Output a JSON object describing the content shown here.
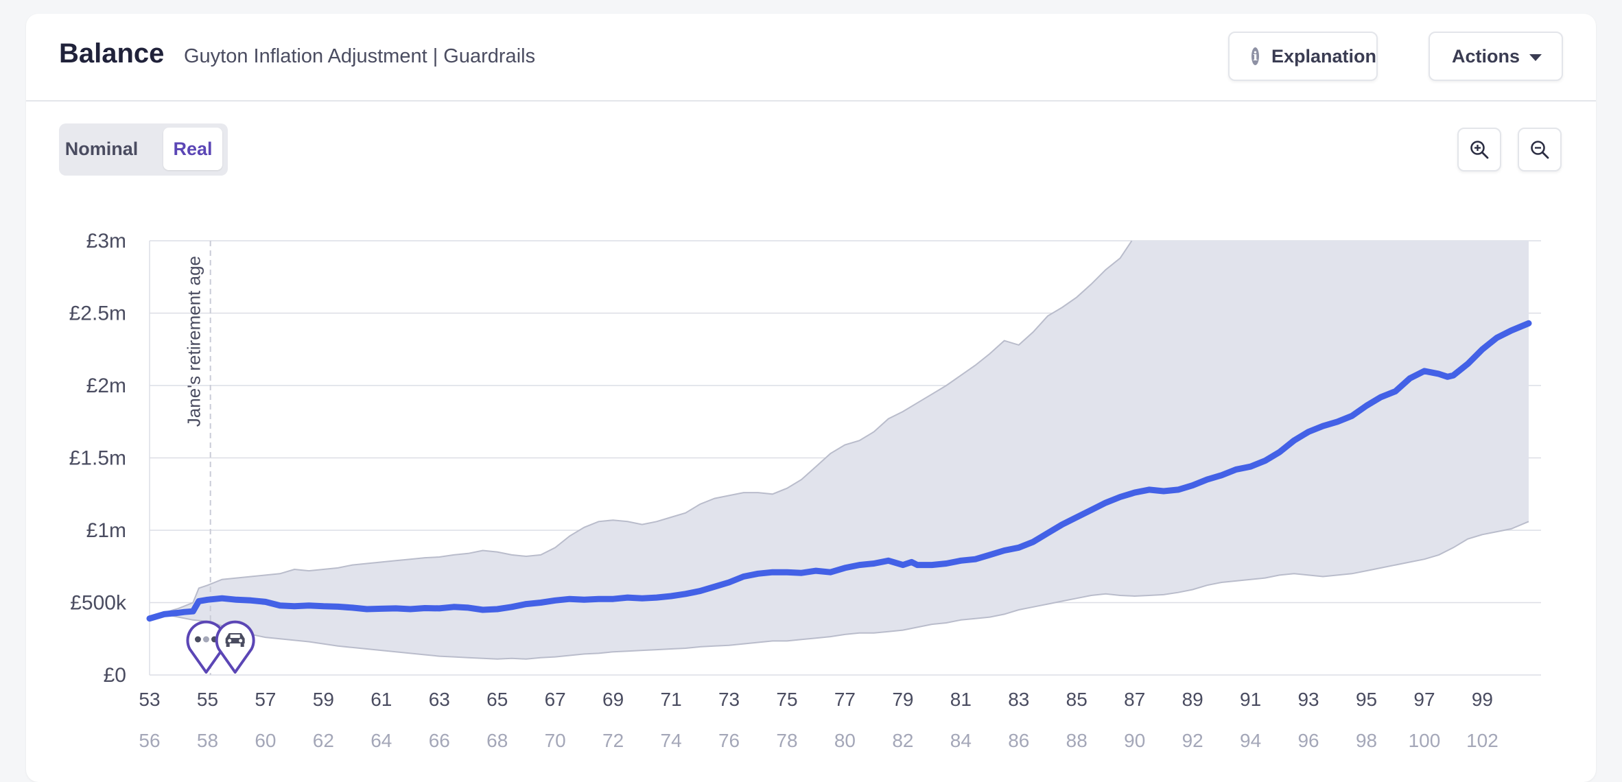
{
  "header": {
    "title": "Balance",
    "subtitle": "Guyton Inflation Adjustment | Guardrails",
    "explanation_label": "Explanation",
    "actions_label": "Actions"
  },
  "toggle": {
    "options": [
      "Nominal",
      "Real"
    ],
    "selected": "Real"
  },
  "zoom": {
    "in_icon": "zoom-in-icon",
    "out_icon": "zoom-out-icon"
  },
  "colors": {
    "accent": "#5b46b5",
    "line": "#4361e6",
    "band": "#e1e3ec",
    "band_edge": "#b9bccb"
  },
  "chart_data": {
    "type": "line",
    "ylim": [
      0,
      3000000
    ],
    "y_ticks": [
      {
        "value": 0,
        "label": "£0"
      },
      {
        "value": 500000,
        "label": "£500k"
      },
      {
        "value": 1000000,
        "label": "£1m"
      },
      {
        "value": 1500000,
        "label": "£1.5m"
      },
      {
        "value": 2000000,
        "label": "£2m"
      },
      {
        "value": 2500000,
        "label": "£2.5m"
      },
      {
        "value": 3000000,
        "label": "£3m"
      }
    ],
    "xlim": [
      53,
      100.6
    ],
    "x_ticks": [
      53,
      55,
      57,
      59,
      61,
      63,
      65,
      67,
      69,
      71,
      73,
      75,
      77,
      79,
      81,
      83,
      85,
      87,
      89,
      91,
      93,
      95,
      97,
      99
    ],
    "x_ticks_secondary": [
      56,
      58,
      60,
      62,
      64,
      66,
      68,
      70,
      72,
      74,
      76,
      78,
      80,
      82,
      84,
      86,
      88,
      90,
      92,
      94,
      96,
      98,
      100,
      102
    ],
    "retirement_marker": {
      "age": 55.1,
      "label": "Jane's retirement age"
    },
    "event_pins": [
      {
        "age": 55,
        "icon": "ellipsis-icon"
      },
      {
        "age": 56,
        "icon": "car-icon"
      }
    ],
    "series": [
      {
        "values": [
          [
            53,
            390000
          ],
          [
            53.5,
            420000
          ],
          [
            54,
            430000
          ],
          [
            54.2,
            435000
          ],
          [
            54.5,
            440000
          ],
          [
            54.7,
            510000
          ],
          [
            55,
            520000
          ],
          [
            55.5,
            530000
          ],
          [
            56,
            520000
          ],
          [
            56.5,
            515000
          ],
          [
            57,
            505000
          ],
          [
            57.5,
            480000
          ],
          [
            58,
            475000
          ],
          [
            58.5,
            480000
          ],
          [
            59,
            475000
          ],
          [
            59.5,
            472000
          ],
          [
            60,
            465000
          ],
          [
            60.5,
            455000
          ],
          [
            61,
            458000
          ],
          [
            61.5,
            460000
          ],
          [
            62,
            455000
          ],
          [
            62.5,
            462000
          ],
          [
            63,
            460000
          ],
          [
            63.5,
            470000
          ],
          [
            64,
            465000
          ],
          [
            64.5,
            450000
          ],
          [
            65,
            455000
          ],
          [
            65.5,
            470000
          ],
          [
            66,
            490000
          ],
          [
            66.5,
            500000
          ],
          [
            67,
            515000
          ],
          [
            67.5,
            525000
          ],
          [
            68,
            520000
          ],
          [
            68.5,
            525000
          ],
          [
            69,
            525000
          ],
          [
            69.5,
            535000
          ],
          [
            70,
            530000
          ],
          [
            70.5,
            535000
          ],
          [
            71,
            545000
          ],
          [
            71.5,
            560000
          ],
          [
            72,
            580000
          ],
          [
            72.5,
            610000
          ],
          [
            73,
            640000
          ],
          [
            73.5,
            680000
          ],
          [
            74,
            700000
          ],
          [
            74.5,
            710000
          ],
          [
            75,
            710000
          ],
          [
            75.5,
            705000
          ],
          [
            76,
            720000
          ],
          [
            76.5,
            710000
          ],
          [
            77,
            740000
          ],
          [
            77.5,
            760000
          ],
          [
            78,
            770000
          ],
          [
            78.5,
            790000
          ],
          [
            79,
            760000
          ],
          [
            79.3,
            780000
          ],
          [
            79.5,
            760000
          ],
          [
            80,
            760000
          ],
          [
            80.5,
            770000
          ],
          [
            81,
            790000
          ],
          [
            81.5,
            800000
          ],
          [
            82,
            830000
          ],
          [
            82.5,
            860000
          ],
          [
            83,
            880000
          ],
          [
            83.5,
            920000
          ],
          [
            84,
            980000
          ],
          [
            84.5,
            1040000
          ],
          [
            85,
            1090000
          ],
          [
            85.5,
            1140000
          ],
          [
            86,
            1190000
          ],
          [
            86.5,
            1230000
          ],
          [
            87,
            1260000
          ],
          [
            87.5,
            1280000
          ],
          [
            88,
            1270000
          ],
          [
            88.5,
            1280000
          ],
          [
            89,
            1310000
          ],
          [
            89.5,
            1350000
          ],
          [
            90,
            1380000
          ],
          [
            90.5,
            1420000
          ],
          [
            91,
            1440000
          ],
          [
            91.5,
            1480000
          ],
          [
            92,
            1540000
          ],
          [
            92.5,
            1620000
          ],
          [
            93,
            1680000
          ],
          [
            93.5,
            1720000
          ],
          [
            94,
            1750000
          ],
          [
            94.5,
            1790000
          ],
          [
            95,
            1860000
          ],
          [
            95.5,
            1920000
          ],
          [
            96,
            1960000
          ],
          [
            96.5,
            2050000
          ],
          [
            97,
            2100000
          ],
          [
            97.5,
            2080000
          ],
          [
            97.8,
            2060000
          ],
          [
            98,
            2070000
          ],
          [
            98.5,
            2150000
          ],
          [
            99,
            2250000
          ],
          [
            99.5,
            2330000
          ],
          [
            100,
            2380000
          ],
          [
            100.6,
            2430000
          ]
        ]
      }
    ],
    "band": {
      "upper": [
        [
          53,
          390000
        ],
        [
          53.5,
          430000
        ],
        [
          54,
          460000
        ],
        [
          54.5,
          500000
        ],
        [
          54.7,
          600000
        ],
        [
          55,
          620000
        ],
        [
          55.5,
          660000
        ],
        [
          56,
          670000
        ],
        [
          56.5,
          680000
        ],
        [
          57,
          690000
        ],
        [
          57.5,
          700000
        ],
        [
          58,
          730000
        ],
        [
          58.5,
          720000
        ],
        [
          59,
          730000
        ],
        [
          59.5,
          740000
        ],
        [
          60,
          760000
        ],
        [
          60.5,
          770000
        ],
        [
          61,
          780000
        ],
        [
          61.5,
          790000
        ],
        [
          62,
          800000
        ],
        [
          62.5,
          810000
        ],
        [
          63,
          815000
        ],
        [
          63.5,
          830000
        ],
        [
          64,
          840000
        ],
        [
          64.5,
          860000
        ],
        [
          65,
          850000
        ],
        [
          65.5,
          830000
        ],
        [
          66,
          820000
        ],
        [
          66.5,
          830000
        ],
        [
          67,
          880000
        ],
        [
          67.5,
          960000
        ],
        [
          68,
          1020000
        ],
        [
          68.5,
          1060000
        ],
        [
          69,
          1070000
        ],
        [
          69.5,
          1060000
        ],
        [
          70,
          1040000
        ],
        [
          70.5,
          1060000
        ],
        [
          71,
          1090000
        ],
        [
          71.5,
          1120000
        ],
        [
          72,
          1180000
        ],
        [
          72.5,
          1220000
        ],
        [
          73,
          1240000
        ],
        [
          73.5,
          1260000
        ],
        [
          74,
          1260000
        ],
        [
          74.5,
          1250000
        ],
        [
          75,
          1290000
        ],
        [
          75.5,
          1350000
        ],
        [
          76,
          1440000
        ],
        [
          76.5,
          1530000
        ],
        [
          77,
          1590000
        ],
        [
          77.5,
          1620000
        ],
        [
          78,
          1680000
        ],
        [
          78.5,
          1770000
        ],
        [
          79,
          1820000
        ],
        [
          79.5,
          1880000
        ],
        [
          80,
          1940000
        ],
        [
          80.5,
          2000000
        ],
        [
          81,
          2070000
        ],
        [
          81.5,
          2140000
        ],
        [
          82,
          2220000
        ],
        [
          82.5,
          2310000
        ],
        [
          83,
          2280000
        ],
        [
          83.5,
          2370000
        ],
        [
          84,
          2480000
        ],
        [
          84.5,
          2540000
        ],
        [
          85,
          2610000
        ],
        [
          85.5,
          2700000
        ],
        [
          86,
          2800000
        ],
        [
          86.5,
          2880000
        ],
        [
          86.9,
          3000000
        ],
        [
          100.6,
          3000000
        ]
      ],
      "lower": [
        [
          53,
          390000
        ],
        [
          53.5,
          420000
        ],
        [
          54,
          400000
        ],
        [
          54.5,
          380000
        ],
        [
          55,
          370000
        ],
        [
          55.5,
          340000
        ],
        [
          56,
          300000
        ],
        [
          56.5,
          280000
        ],
        [
          57,
          260000
        ],
        [
          57.5,
          250000
        ],
        [
          58,
          240000
        ],
        [
          58.5,
          230000
        ],
        [
          59,
          215000
        ],
        [
          59.5,
          200000
        ],
        [
          60,
          190000
        ],
        [
          60.5,
          180000
        ],
        [
          61,
          170000
        ],
        [
          61.5,
          160000
        ],
        [
          62,
          150000
        ],
        [
          62.5,
          140000
        ],
        [
          63,
          130000
        ],
        [
          63.5,
          125000
        ],
        [
          64,
          120000
        ],
        [
          64.5,
          115000
        ],
        [
          65,
          110000
        ],
        [
          65.5,
          115000
        ],
        [
          66,
          110000
        ],
        [
          66.5,
          120000
        ],
        [
          67,
          125000
        ],
        [
          67.5,
          135000
        ],
        [
          68,
          145000
        ],
        [
          68.5,
          150000
        ],
        [
          69,
          160000
        ],
        [
          69.5,
          165000
        ],
        [
          70,
          170000
        ],
        [
          70.5,
          175000
        ],
        [
          71,
          180000
        ],
        [
          71.5,
          185000
        ],
        [
          72,
          195000
        ],
        [
          72.5,
          200000
        ],
        [
          73,
          205000
        ],
        [
          73.5,
          215000
        ],
        [
          74,
          225000
        ],
        [
          74.5,
          235000
        ],
        [
          75,
          235000
        ],
        [
          75.5,
          245000
        ],
        [
          76,
          255000
        ],
        [
          76.5,
          265000
        ],
        [
          77,
          280000
        ],
        [
          77.5,
          290000
        ],
        [
          78,
          290000
        ],
        [
          78.5,
          300000
        ],
        [
          79,
          310000
        ],
        [
          79.5,
          330000
        ],
        [
          80,
          350000
        ],
        [
          80.5,
          360000
        ],
        [
          81,
          380000
        ],
        [
          81.5,
          390000
        ],
        [
          82,
          400000
        ],
        [
          82.5,
          420000
        ],
        [
          83,
          450000
        ],
        [
          83.5,
          470000
        ],
        [
          84,
          490000
        ],
        [
          84.5,
          510000
        ],
        [
          85,
          530000
        ],
        [
          85.5,
          550000
        ],
        [
          86,
          560000
        ],
        [
          86.5,
          550000
        ],
        [
          87,
          545000
        ],
        [
          87.5,
          550000
        ],
        [
          88,
          555000
        ],
        [
          88.5,
          570000
        ],
        [
          89,
          590000
        ],
        [
          89.5,
          620000
        ],
        [
          90,
          640000
        ],
        [
          90.5,
          650000
        ],
        [
          91,
          660000
        ],
        [
          91.5,
          670000
        ],
        [
          92,
          690000
        ],
        [
          92.5,
          700000
        ],
        [
          93,
          690000
        ],
        [
          93.5,
          680000
        ],
        [
          94,
          690000
        ],
        [
          94.5,
          700000
        ],
        [
          95,
          720000
        ],
        [
          95.5,
          740000
        ],
        [
          96,
          760000
        ],
        [
          96.5,
          780000
        ],
        [
          97,
          800000
        ],
        [
          97.5,
          830000
        ],
        [
          98,
          880000
        ],
        [
          98.5,
          940000
        ],
        [
          99,
          970000
        ],
        [
          99.5,
          990000
        ],
        [
          100,
          1010000
        ],
        [
          100.6,
          1060000
        ]
      ]
    }
  }
}
